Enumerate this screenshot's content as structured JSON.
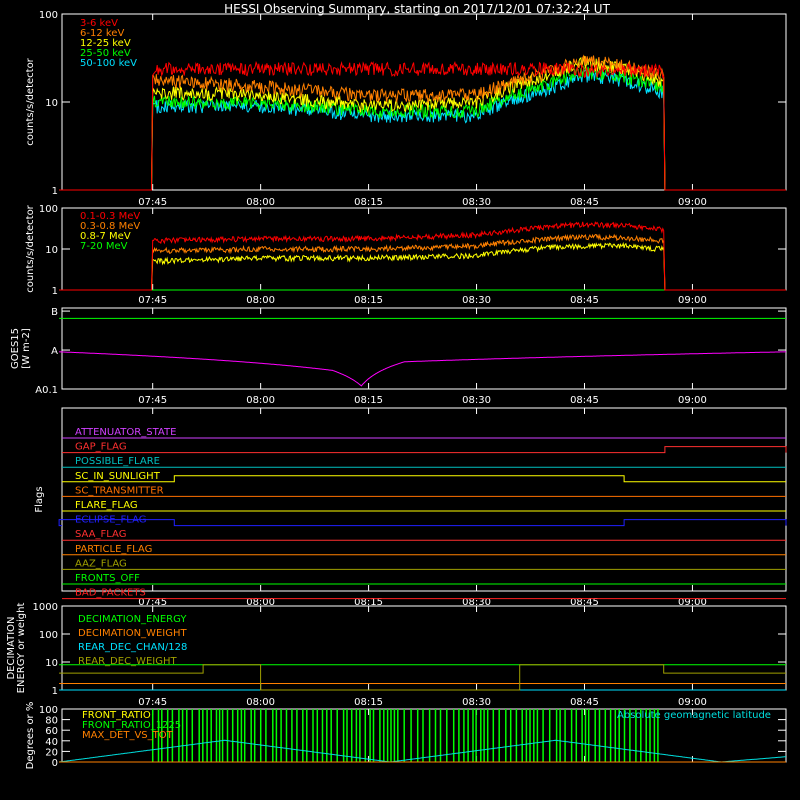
{
  "title": "HESSI Observing Summary, starting on 2017/12/01 07:32:24 UT",
  "time_ticks": [
    "07:45",
    "08:00",
    "08:15",
    "08:30",
    "08:45",
    "09:00"
  ],
  "chart_data": [
    {
      "type": "line",
      "panel": "count rates low energy",
      "ylabel": "counts/s/detector",
      "yscale": "log",
      "ylim": [
        1,
        100
      ],
      "yticks": [
        "1",
        "10",
        "100"
      ],
      "xlim": [
        "07:32:24",
        "09:13:00"
      ],
      "legend_position": "top-left",
      "series": [
        {
          "name": "3-6 keV",
          "color": "#ff0000",
          "x": [
            "07:32",
            "07:44:50",
            "07:45",
            "08:00",
            "08:15",
            "08:30",
            "08:40",
            "08:45",
            "08:50",
            "08:56",
            "08:56:10",
            "09:13"
          ],
          "values": [
            1,
            1,
            24,
            24,
            24,
            24,
            24,
            23,
            23,
            23,
            1,
            1
          ]
        },
        {
          "name": "6-12 keV",
          "color": "#ff8000",
          "x": [
            "07:32",
            "07:44:50",
            "07:45",
            "08:00",
            "08:15",
            "08:30",
            "08:40",
            "08:45",
            "08:50",
            "08:56",
            "08:56:10",
            "09:13"
          ],
          "values": [
            1,
            1,
            18,
            15,
            12,
            12,
            22,
            30,
            26,
            20,
            1,
            1
          ]
        },
        {
          "name": "12-25 keV",
          "color": "#ffff00",
          "x": [
            "07:32",
            "07:44:50",
            "07:45",
            "08:00",
            "08:15",
            "08:30",
            "08:40",
            "08:45",
            "08:50",
            "08:56",
            "08:56:10",
            "09:13"
          ],
          "values": [
            1,
            1,
            13,
            12,
            9,
            10,
            20,
            28,
            24,
            17,
            1,
            1
          ]
        },
        {
          "name": "25-50 keV",
          "color": "#00ff00",
          "x": [
            "07:32",
            "07:44:50",
            "07:45",
            "08:00",
            "08:15",
            "08:30",
            "08:40",
            "08:45",
            "08:50",
            "08:56",
            "08:56:10",
            "09:13"
          ],
          "values": [
            1,
            1,
            10,
            10,
            8,
            8,
            16,
            22,
            20,
            15,
            1,
            1
          ]
        },
        {
          "name": "50-100 keV",
          "color": "#00e0ff",
          "x": [
            "07:32",
            "07:44:50",
            "07:45",
            "08:00",
            "08:15",
            "08:30",
            "08:40",
            "08:45",
            "08:50",
            "08:56",
            "08:56:10",
            "09:13"
          ],
          "values": [
            1,
            1,
            9,
            9,
            7,
            7,
            14,
            20,
            18,
            13,
            1,
            1
          ]
        }
      ]
    },
    {
      "type": "line",
      "panel": "count rates high energy",
      "ylabel": "counts/s/detector",
      "yscale": "log",
      "ylim": [
        1,
        100
      ],
      "yticks": [
        "1",
        "10",
        "100"
      ],
      "xlim": [
        "07:32:24",
        "09:13:00"
      ],
      "legend_position": "top-left",
      "series": [
        {
          "name": "0.1-0.3 MeV",
          "color": "#ff0000",
          "x": [
            "07:32",
            "07:44:50",
            "07:45",
            "08:00",
            "08:15",
            "08:30",
            "08:40",
            "08:45",
            "08:50",
            "08:56",
            "08:56:10",
            "09:13"
          ],
          "values": [
            1,
            1,
            16,
            18,
            18,
            22,
            35,
            40,
            38,
            30,
            1,
            1
          ]
        },
        {
          "name": "0.3-0.8 MeV",
          "color": "#ff8000",
          "x": [
            "07:32",
            "07:44:50",
            "07:45",
            "08:00",
            "08:15",
            "08:30",
            "08:40",
            "08:45",
            "08:50",
            "08:56",
            "08:56:10",
            "09:13"
          ],
          "values": [
            1,
            1,
            9,
            10,
            10,
            12,
            18,
            20,
            19,
            16,
            1,
            1
          ]
        },
        {
          "name": "0.8-7 MeV",
          "color": "#ffff00",
          "x": [
            "07:32",
            "07:44:50",
            "07:45",
            "08:00",
            "08:15",
            "08:30",
            "08:40",
            "08:45",
            "08:50",
            "08:56",
            "08:56:10",
            "09:13"
          ],
          "values": [
            1,
            1,
            5,
            6,
            6,
            7,
            11,
            12,
            12,
            10,
            1,
            1
          ]
        },
        {
          "name": "7-20 MeV",
          "color": "#00ff00",
          "x": [
            "07:32",
            "09:13"
          ],
          "values": [
            1,
            1
          ]
        }
      ]
    },
    {
      "type": "line",
      "panel": "GOES flux",
      "ylabel": "GOES15 [W m-2]",
      "yscale": "log",
      "yticks": [
        "A0.1",
        "A",
        "B"
      ],
      "xlim": [
        "07:32:24",
        "09:13:00"
      ],
      "series": [
        {
          "name": "GOES long",
          "color": "#00ff00",
          "level": "B-",
          "x": [
            "07:32",
            "09:13"
          ],
          "values": [
            6.5e-08,
            6.5e-08
          ]
        },
        {
          "name": "GOES short",
          "color": "#ff00ff",
          "level": "A",
          "x": [
            "07:32",
            "08:10",
            "08:14",
            "08:20",
            "09:13"
          ],
          "values": [
            9e-09,
            3e-09,
            1.2e-09,
            5e-09,
            9e-09
          ]
        }
      ]
    },
    {
      "type": "line",
      "panel": "Flags",
      "ylabel": "Flags",
      "xlim": [
        "07:32:24",
        "09:13:00"
      ],
      "flags": [
        {
          "name": "ATTENUATOR_STATE",
          "color": "#d040ff",
          "on": []
        },
        {
          "name": "GAP_FLAG",
          "color": "#ff3030",
          "on": [
            [
              "08:56:10",
              "09:13"
            ]
          ]
        },
        {
          "name": "POSSIBLE_FLARE",
          "color": "#00c0c0",
          "on": []
        },
        {
          "name": "SC_IN_SUNLIGHT",
          "color": "#ffff00",
          "on": [
            [
              "07:48",
              "08:50:30"
            ]
          ]
        },
        {
          "name": "SC_TRANSMITTER",
          "color": "#ff7000",
          "on": []
        },
        {
          "name": "FLARE_FLAG",
          "color": "#ffff00",
          "on": []
        },
        {
          "name": "ECLIPSE_FLAG",
          "color": "#2020ff",
          "on": [
            [
              "07:32",
              "07:48"
            ],
            [
              "08:50:30",
              "09:13"
            ]
          ]
        },
        {
          "name": "SAA_FLAG",
          "color": "#ff3030",
          "on": []
        },
        {
          "name": "PARTICLE_FLAG",
          "color": "#ff8000",
          "on": []
        },
        {
          "name": "AAZ_FLAG",
          "color": "#a0a000",
          "on": []
        },
        {
          "name": "FRONTS_OFF",
          "color": "#00ff00",
          "on": []
        },
        {
          "name": "BAD_PACKETS",
          "color": "#ff2020",
          "on": []
        }
      ]
    },
    {
      "type": "line",
      "panel": "Decimation",
      "ylabel": "DECIMATION ENERGY or weight",
      "yscale": "log",
      "ylim": [
        1,
        1000
      ],
      "yticks": [
        "1",
        "10",
        "100",
        "1000"
      ],
      "xlim": [
        "07:32:24",
        "09:13:00"
      ],
      "series": [
        {
          "name": "DECIMATION_ENERGY",
          "color": "#00ff00",
          "x": [
            "07:32",
            "07:52",
            "07:52",
            "08:00",
            "08:00",
            "08:36",
            "08:36",
            "08:56",
            "08:56",
            "09:13"
          ],
          "values": [
            8,
            8,
            8,
            8,
            8,
            8,
            8,
            8,
            8,
            8
          ]
        },
        {
          "name": "DECIMATION_WEIGHT",
          "color": "#ff8000",
          "x": [
            "07:32",
            "09:13"
          ],
          "values": [
            1.7,
            1.7
          ]
        },
        {
          "name": "REAR_DEC_CHAN/128",
          "color": "#00e0ff",
          "x": [
            "07:32",
            "09:13"
          ],
          "values": [
            1,
            1
          ]
        },
        {
          "name": "REAR_DEC_WEIGHT",
          "color": "#a0a000",
          "x": [
            "07:32",
            "07:52",
            "07:52",
            "08:00",
            "08:00",
            "08:36",
            "08:36",
            "08:56",
            "08:56",
            "09:13"
          ],
          "values": [
            4,
            4,
            8,
            8,
            1,
            1,
            8,
            8,
            4,
            4
          ]
        }
      ]
    },
    {
      "type": "line",
      "panel": "Ratios",
      "ylabel": "Degrees or %",
      "ylim": [
        0,
        100
      ],
      "yticks": [
        "0",
        "20",
        "40",
        "60",
        "80",
        "100"
      ],
      "xlim": [
        "07:32:24",
        "09:13:00"
      ],
      "series": [
        {
          "name": "FRONT_RATIO",
          "color": "#ffff00",
          "x": [
            "07:32",
            "09:13"
          ],
          "values": [
            0,
            0
          ]
        },
        {
          "name": "FRONT_RATIO_1225",
          "color": "#00ff00",
          "x": [
            "07:45",
            "08:56"
          ],
          "values": [
            100,
            100
          ]
        },
        {
          "name": "MAX_DET_VS_TOT",
          "color": "#ff8000",
          "x": [
            "07:32",
            "09:13"
          ],
          "values": [
            0,
            0
          ]
        },
        {
          "name": "Absolute geomagnetic latitude",
          "color": "#00e0e0",
          "x": [
            "07:32",
            "07:55",
            "08:18",
            "08:41",
            "09:04",
            "09:13"
          ],
          "values": [
            0,
            41,
            0,
            41,
            0,
            10
          ]
        }
      ]
    }
  ]
}
